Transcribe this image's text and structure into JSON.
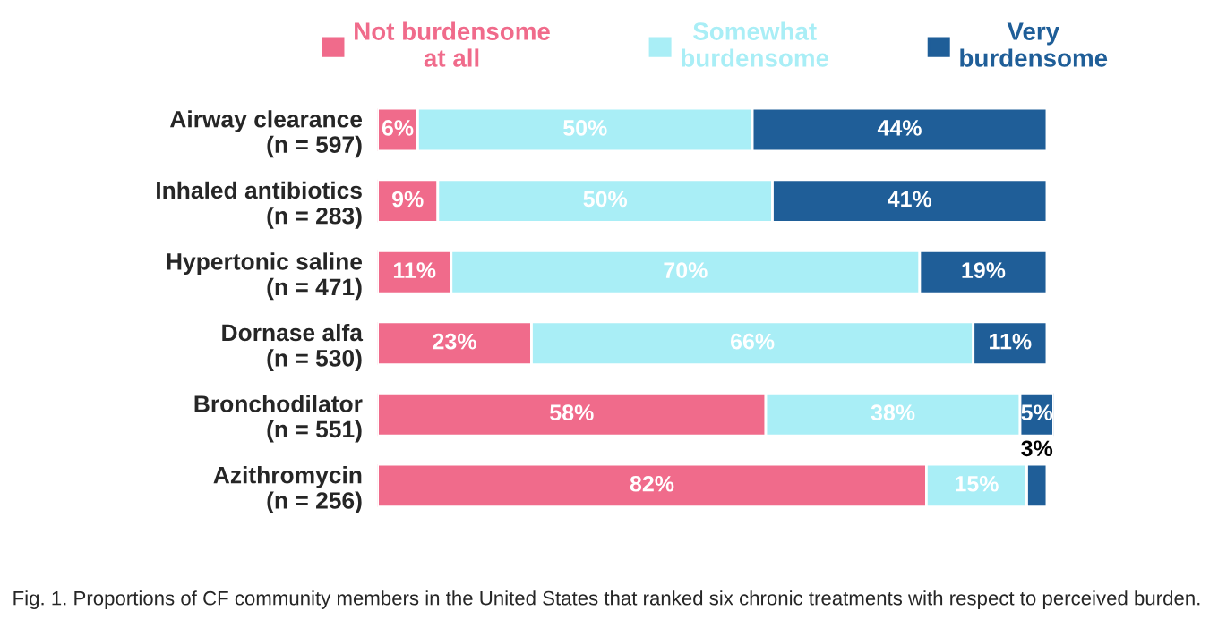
{
  "chart_data": {
    "type": "bar",
    "orientation": "horizontal",
    "stacked": true,
    "categories": [
      "Airway clearance\n(n = 597)",
      "Inhaled antibiotics\n(n = 283)",
      "Hypertonic saline\n(n = 471)",
      "Dornase alfa\n(n = 530)",
      "Bronchodilator\n(n = 551)",
      "Azithromycin\n(n = 256)"
    ],
    "series": [
      {
        "name": "Not burdensome\nat all",
        "color": "#f06b8b",
        "values": [
          6,
          9,
          11,
          23,
          58,
          82
        ],
        "value_labels": [
          "6%",
          "9%",
          "11%",
          "23%",
          "58%",
          "82%"
        ]
      },
      {
        "name": "Somewhat\nburdensome",
        "color": "#a9eef6",
        "values": [
          50,
          50,
          70,
          66,
          38,
          15
        ],
        "value_labels": [
          "50%",
          "50%",
          "70%",
          "66%",
          "38%",
          "15%"
        ]
      },
      {
        "name": "Very\nburdensome",
        "color": "#1f5e98",
        "values": [
          44,
          41,
          19,
          11,
          5,
          3
        ],
        "value_labels": [
          "44%",
          "41%",
          "19%",
          "11%",
          "5%",
          "3%"
        ]
      }
    ],
    "xlim": [
      0,
      101
    ],
    "legend": "top",
    "grid": false,
    "annotations": [
      "Fig. 1. Proportions of CF community members in the United States that ranked six chronic treatments with respect to perceived burden."
    ]
  }
}
